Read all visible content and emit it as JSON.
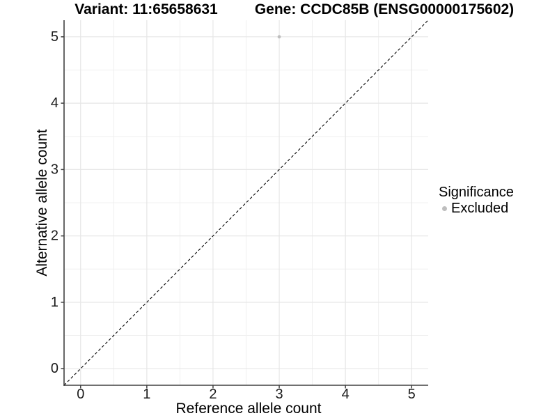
{
  "titles": {
    "variant": "Variant: 11:65658631",
    "gene": "Gene: CCDC85B (ENSG00000175602)"
  },
  "legend": {
    "title": "Significance",
    "items": [
      {
        "label": "Excluded",
        "color": "#bebebe"
      }
    ]
  },
  "chart_data": {
    "type": "scatter",
    "title": "Variant: 11:65658631 | Gene: CCDC85B (ENSG00000175602)",
    "xlabel": "Reference allele count",
    "ylabel": "Alternative allele count",
    "xlim": [
      -0.25,
      5.25
    ],
    "ylim": [
      -0.25,
      5.25
    ],
    "x_ticks": [
      0,
      1,
      2,
      3,
      4,
      5
    ],
    "y_ticks": [
      0,
      1,
      2,
      3,
      4,
      5
    ],
    "grid": "major and minor, light gray on white",
    "legend_position": "right",
    "series": [
      {
        "name": "Excluded",
        "color": "#bebebe",
        "points": [
          {
            "x": 3,
            "y": 5
          }
        ]
      }
    ],
    "reference_line": {
      "type": "identity y=x",
      "style": "dashed",
      "color": "#000000",
      "span": [
        -0.25,
        5.25
      ]
    },
    "colors": {
      "grid_major": "#e6e6e6",
      "grid_minor": "#f0f0f0",
      "axis": "#404040",
      "tick_label": "#1a1a1a"
    }
  }
}
